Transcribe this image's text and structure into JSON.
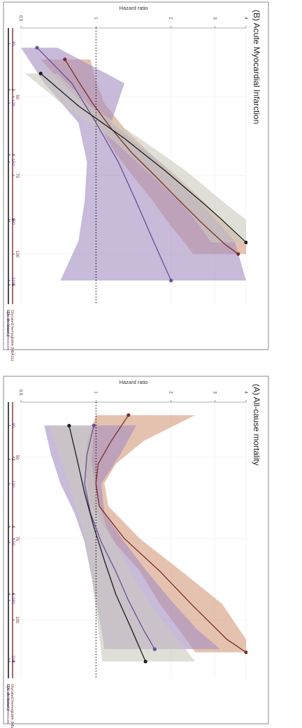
{
  "chart_data": [
    {
      "type": "line",
      "title": "(A) All-cause mortality",
      "ylabel": "Hazard ratio",
      "ylim": [
        0.5,
        4
      ],
      "yticks": [
        "0.5",
        "1",
        "2",
        "3",
        "4"
      ],
      "reference_line": 1,
      "x_scales": [
        {
          "name": "Glycated hemoglobin (HbA1c)",
          "color": "#7a2e2b",
          "ticks": [
            "50",
            "75",
            "100"
          ],
          "range": [
            33,
            118
          ]
        },
        {
          "name": "Systolic blood pressure",
          "color": "#6a4e94",
          "ticks": [
            "90",
            "120",
            "150",
            "180",
            "210"
          ],
          "range": [
            78,
            220
          ]
        },
        {
          "name": "LDL cholesterol",
          "color": "#1a1a1a",
          "ticks": [
            "2",
            "4",
            "6",
            "8"
          ],
          "range": [
            0.3,
            8.5
          ]
        }
      ],
      "series": [
        {
          "name": "Glycated hemoglobin (HbA1c)",
          "color": "#7a2e2b",
          "band": "#d49a7c",
          "scale": 0,
          "x": [
            37,
            45,
            52,
            58,
            65,
            75,
            85,
            95,
            106,
            110
          ],
          "y": [
            1.35,
            1.15,
            1.02,
            1.0,
            1.03,
            1.3,
            1.8,
            2.4,
            3.35,
            4.0
          ],
          "lo": [
            1.0,
            0.92,
            0.9,
            0.92,
            0.96,
            1.15,
            1.5,
            1.8,
            2.3,
            2.5
          ],
          "hi": [
            2.5,
            1.55,
            1.2,
            1.08,
            1.12,
            1.5,
            2.2,
            3.2,
            4.0,
            4.0
          ]
        },
        {
          "name": "Systolic blood pressure",
          "color": "#6a4e94",
          "band": "#a48cc0",
          "scale": 1,
          "x": [
            90,
            105,
            120,
            135,
            150,
            165,
            180,
            195,
            205
          ],
          "y": [
            0.98,
            0.92,
            0.9,
            0.95,
            1.05,
            1.2,
            1.35,
            1.55,
            1.72
          ],
          "lo": [
            0.62,
            0.66,
            0.72,
            0.82,
            0.9,
            0.95,
            1.0,
            1.05,
            1.08
          ],
          "hi": [
            1.45,
            1.25,
            1.05,
            1.08,
            1.3,
            1.6,
            2.0,
            2.55,
            3.15
          ]
        },
        {
          "name": "LDL cholesterol",
          "color": "#1a1a1a",
          "band": "#c9c9be",
          "scale": 2,
          "x": [
            1.0,
            2.0,
            3.0,
            4.0,
            5.0,
            6.0,
            7.0,
            8.0
          ],
          "y": [
            0.78,
            0.84,
            0.9,
            0.98,
            1.08,
            1.2,
            1.38,
            1.58
          ],
          "lo": [
            0.65,
            0.72,
            0.8,
            0.88,
            0.94,
            0.98,
            1.02,
            1.06
          ],
          "hi": [
            0.98,
            0.96,
            1.0,
            1.1,
            1.3,
            1.55,
            1.95,
            2.5
          ]
        }
      ]
    },
    {
      "type": "line",
      "title": "(B) Acute Myocardial Infarction",
      "ylabel": "Hazard ratio",
      "ylim": [
        0.5,
        4
      ],
      "yticks": [
        "0.5",
        "1",
        "2",
        "3",
        "4"
      ],
      "reference_line": 1,
      "x_scales": [
        {
          "name": "Glycated hemoglobin (HbA1c)",
          "color": "#7a2e2b",
          "ticks": [
            "50",
            "75",
            "100"
          ],
          "range": [
            28,
            116
          ]
        },
        {
          "name": "Systolic blood pressure",
          "color": "#6a4e94",
          "ticks": [
            "90",
            "120",
            "150",
            "180",
            "210"
          ],
          "range": [
            82,
            222
          ]
        },
        {
          "name": "LDL cholesterol",
          "color": "#1a1a1a",
          "ticks": [
            "2",
            "4",
            "6",
            "8"
          ],
          "range": [
            0.1,
            8.6
          ]
        }
      ],
      "series": [
        {
          "name": "Glycated hemoglobin (HbA1c)",
          "color": "#7a2e2b",
          "band": "#d49a7c",
          "scale": 0,
          "x": [
            38,
            45,
            52,
            60,
            68,
            75,
            82,
            90,
            97,
            100
          ],
          "y": [
            0.75,
            0.85,
            0.97,
            1.15,
            1.4,
            1.72,
            2.1,
            2.65,
            3.3,
            3.72
          ],
          "lo": [
            0.6,
            0.72,
            0.88,
            1.05,
            1.2,
            1.4,
            1.65,
            1.95,
            2.3,
            2.45
          ],
          "hi": [
            0.95,
            1.0,
            1.08,
            1.3,
            1.65,
            2.1,
            2.6,
            3.3,
            4.0,
            4.0
          ]
        },
        {
          "name": "Systolic blood pressure",
          "color": "#6a4e94",
          "band": "#a48cc0",
          "scale": 1,
          "x": [
            92,
            110,
            130,
            150,
            170,
            190,
            210
          ],
          "y": [
            0.58,
            0.8,
            1.0,
            1.23,
            1.45,
            1.7,
            2.0
          ],
          "lo": [
            0.5,
            0.62,
            0.85,
            0.92,
            0.9,
            0.85,
            0.72
          ],
          "hi": [
            0.7,
            1.3,
            1.15,
            1.8,
            2.6,
            3.6,
            4.0
          ]
        },
        {
          "name": "LDL cholesterol",
          "color": "#1a1a1a",
          "band": "#c9c9be",
          "scale": 2,
          "x": [
            1.5,
            2.5,
            3.5,
            4.5,
            5.5,
            6.0,
            6.7
          ],
          "y": [
            0.6,
            0.85,
            1.3,
            1.9,
            2.7,
            3.2,
            4.0
          ],
          "lo": [
            0.52,
            0.75,
            1.15,
            1.6,
            2.2,
            2.5,
            2.9
          ],
          "hi": [
            0.7,
            0.95,
            1.5,
            2.3,
            3.3,
            4.0,
            4.0
          ]
        }
      ]
    }
  ]
}
